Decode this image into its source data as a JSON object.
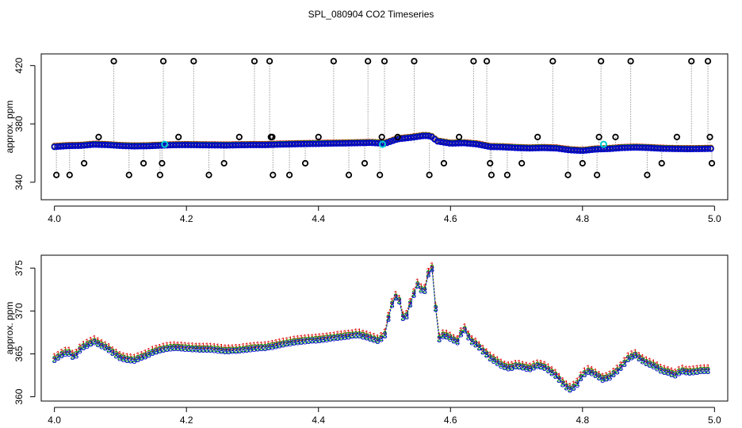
{
  "title": "SPL_080904  CO2 Timeseries",
  "colors": {
    "red": "#dd0000",
    "green": "#00aa00",
    "blue": "#0000cc",
    "cyan": "#00cccc",
    "black": "#000000",
    "spike_line": "#999999"
  },
  "chart_data": [
    {
      "type": "scatter",
      "ylabel": "approx. ppm",
      "xlim": [
        3.98,
        5.02
      ],
      "ylim": [
        328,
        428
      ],
      "xticks": [
        "4.0",
        "4.2",
        "4.4",
        "4.6",
        "4.8",
        "5.0"
      ],
      "yticks": [
        "340",
        "380",
        "420"
      ],
      "baseline": {
        "x": [
          4.0,
          4.02,
          4.04,
          4.06,
          4.08,
          4.1,
          4.12,
          4.14,
          4.16,
          4.18,
          4.2,
          4.22,
          4.24,
          4.26,
          4.28,
          4.3,
          4.32,
          4.34,
          4.36,
          4.38,
          4.4,
          4.42,
          4.44,
          4.46,
          4.48,
          4.5,
          4.52,
          4.54,
          4.56,
          4.57,
          4.58,
          4.6,
          4.62,
          4.64,
          4.66,
          4.68,
          4.7,
          4.72,
          4.74,
          4.76,
          4.78,
          4.8,
          4.82,
          4.84,
          4.86,
          4.88,
          4.9,
          4.92,
          4.94,
          4.96,
          4.98,
          4.99
        ],
        "y": [
          364.2,
          364.8,
          365.0,
          365.8,
          365.5,
          364.9,
          364.6,
          364.7,
          365.1,
          365.4,
          365.5,
          365.4,
          365.3,
          365.2,
          365.4,
          365.5,
          365.5,
          365.8,
          366.0,
          366.2,
          366.3,
          366.5,
          366.6,
          366.8,
          367.0,
          366.4,
          369.5,
          370.5,
          371.8,
          371.5,
          368.0,
          366.5,
          366.8,
          366.0,
          364.2,
          364.0,
          363.5,
          363.2,
          363.5,
          363.2,
          362.0,
          361.5,
          362.5,
          362.8,
          363.5,
          363.8,
          363.5,
          363.0,
          362.8,
          362.7,
          362.8,
          362.9
        ]
      },
      "spikes": {
        "x": [
          4.003,
          4.023,
          4.045,
          4.067,
          4.09,
          4.113,
          4.135,
          4.16,
          4.163,
          4.165,
          4.188,
          4.211,
          4.234,
          4.257,
          4.28,
          4.303,
          4.326,
          4.328,
          4.33,
          4.331,
          4.356,
          4.38,
          4.4,
          4.423,
          4.446,
          4.47,
          4.475,
          4.493,
          4.496,
          4.5,
          4.52,
          4.545,
          4.568,
          4.59,
          4.613,
          4.635,
          4.655,
          4.66,
          4.662,
          4.686,
          4.708,
          4.732,
          4.755,
          4.778,
          4.8,
          4.822,
          4.825,
          4.828,
          4.85,
          4.873,
          4.898,
          4.92,
          4.943,
          4.965,
          4.99,
          4.993,
          4.996
        ],
        "y": [
          345,
          345,
          353,
          371,
          423,
          345,
          353,
          345,
          353,
          423,
          371,
          423,
          345,
          353,
          371,
          423,
          423,
          371,
          371,
          345,
          345,
          353,
          371,
          423,
          345,
          353,
          423,
          345,
          371,
          423,
          371,
          423,
          345,
          353,
          371,
          423,
          423,
          353,
          345,
          345,
          353,
          371,
          423,
          345,
          353,
          345,
          371,
          423,
          371,
          423,
          345,
          353,
          371,
          423,
          423,
          371,
          353
        ],
        "end_y": [
          366,
          366,
          365,
          366,
          365,
          365,
          366,
          366,
          366,
          366,
          366,
          366,
          366,
          366,
          366,
          366,
          366,
          366,
          366,
          366,
          366,
          366,
          366,
          367,
          367,
          367,
          367,
          367,
          367,
          367,
          367,
          367,
          367,
          367,
          367,
          367,
          367,
          366,
          366,
          366,
          366,
          366,
          366,
          366,
          366,
          366,
          366,
          366,
          366,
          366,
          366,
          366,
          366,
          366,
          366,
          366,
          366
        ]
      },
      "cyan_markers": {
        "x": [
          4.167,
          4.497,
          4.832
        ],
        "y": [
          366,
          366,
          366
        ]
      },
      "peak_bump": {
        "x": [
          4.48,
          4.5,
          4.51,
          4.52,
          4.53,
          4.54,
          4.55,
          4.56,
          4.57,
          4.58,
          4.59,
          4.6
        ],
        "y": [
          367,
          367,
          369,
          371,
          372,
          371,
          372,
          373,
          374,
          371,
          368,
          367
        ]
      }
    },
    {
      "type": "line",
      "ylabel": "approx. ppm",
      "xlim": [
        3.98,
        5.02
      ],
      "ylim": [
        359.5,
        376.5
      ],
      "xticks": [
        "4.0",
        "4.2",
        "4.4",
        "4.6",
        "4.8",
        "5.0"
      ],
      "yticks": [
        "360",
        "365",
        "370",
        "375"
      ],
      "series": [
        {
          "marker": "1",
          "color": "#dd0000",
          "offset": 0.45,
          "x": [],
          "values": []
        },
        {
          "marker": "2",
          "color": "#00aa00",
          "offset": 0.15,
          "x": [],
          "values": []
        },
        {
          "marker": "3",
          "color": "#0000cc",
          "offset": 0.0,
          "x": [],
          "values": []
        }
      ],
      "blue_curve": {
        "x": [
          4.0,
          4.01,
          4.02,
          4.03,
          4.04,
          4.05,
          4.06,
          4.07,
          4.08,
          4.09,
          4.1,
          4.11,
          4.12,
          4.13,
          4.14,
          4.15,
          4.16,
          4.17,
          4.18,
          4.2,
          4.22,
          4.24,
          4.26,
          4.28,
          4.3,
          4.32,
          4.34,
          4.36,
          4.38,
          4.4,
          4.42,
          4.44,
          4.46,
          4.47,
          4.49,
          4.5,
          4.51,
          4.52,
          4.53,
          4.54,
          4.55,
          4.56,
          4.57,
          4.575,
          4.58,
          4.59,
          4.6,
          4.61,
          4.62,
          4.63,
          4.64,
          4.65,
          4.66,
          4.67,
          4.68,
          4.69,
          4.7,
          4.71,
          4.72,
          4.73,
          4.74,
          4.75,
          4.76,
          4.77,
          4.78,
          4.79,
          4.8,
          4.81,
          4.82,
          4.83,
          4.84,
          4.85,
          4.86,
          4.87,
          4.88,
          4.89,
          4.9,
          4.91,
          4.92,
          4.93,
          4.94,
          4.95,
          4.96,
          4.97,
          4.98,
          4.99
        ],
        "y": [
          364.3,
          364.8,
          365.2,
          364.5,
          365.6,
          366.0,
          366.4,
          366.0,
          365.6,
          365.0,
          364.5,
          364.3,
          364.2,
          364.5,
          364.8,
          365.2,
          365.4,
          365.6,
          365.7,
          365.6,
          365.5,
          365.5,
          365.3,
          365.4,
          365.6,
          365.7,
          366.0,
          366.3,
          366.5,
          366.6,
          366.8,
          367.0,
          367.2,
          367.0,
          366.5,
          367.0,
          370.5,
          372.0,
          368.5,
          371.0,
          373.0,
          372.0,
          375.5,
          374.0,
          366.5,
          367.2,
          366.8,
          366.3,
          368.0,
          366.5,
          366.0,
          365.2,
          364.5,
          364.0,
          363.5,
          363.3,
          363.6,
          363.4,
          363.2,
          363.6,
          363.5,
          363.0,
          362.4,
          361.5,
          360.8,
          361.2,
          362.5,
          363.0,
          362.5,
          362.0,
          362.2,
          362.8,
          363.5,
          364.5,
          364.8,
          364.2,
          363.8,
          363.5,
          363.0,
          362.8,
          362.5,
          363.0,
          362.8,
          362.9,
          363.0,
          363.0
        ]
      }
    }
  ]
}
